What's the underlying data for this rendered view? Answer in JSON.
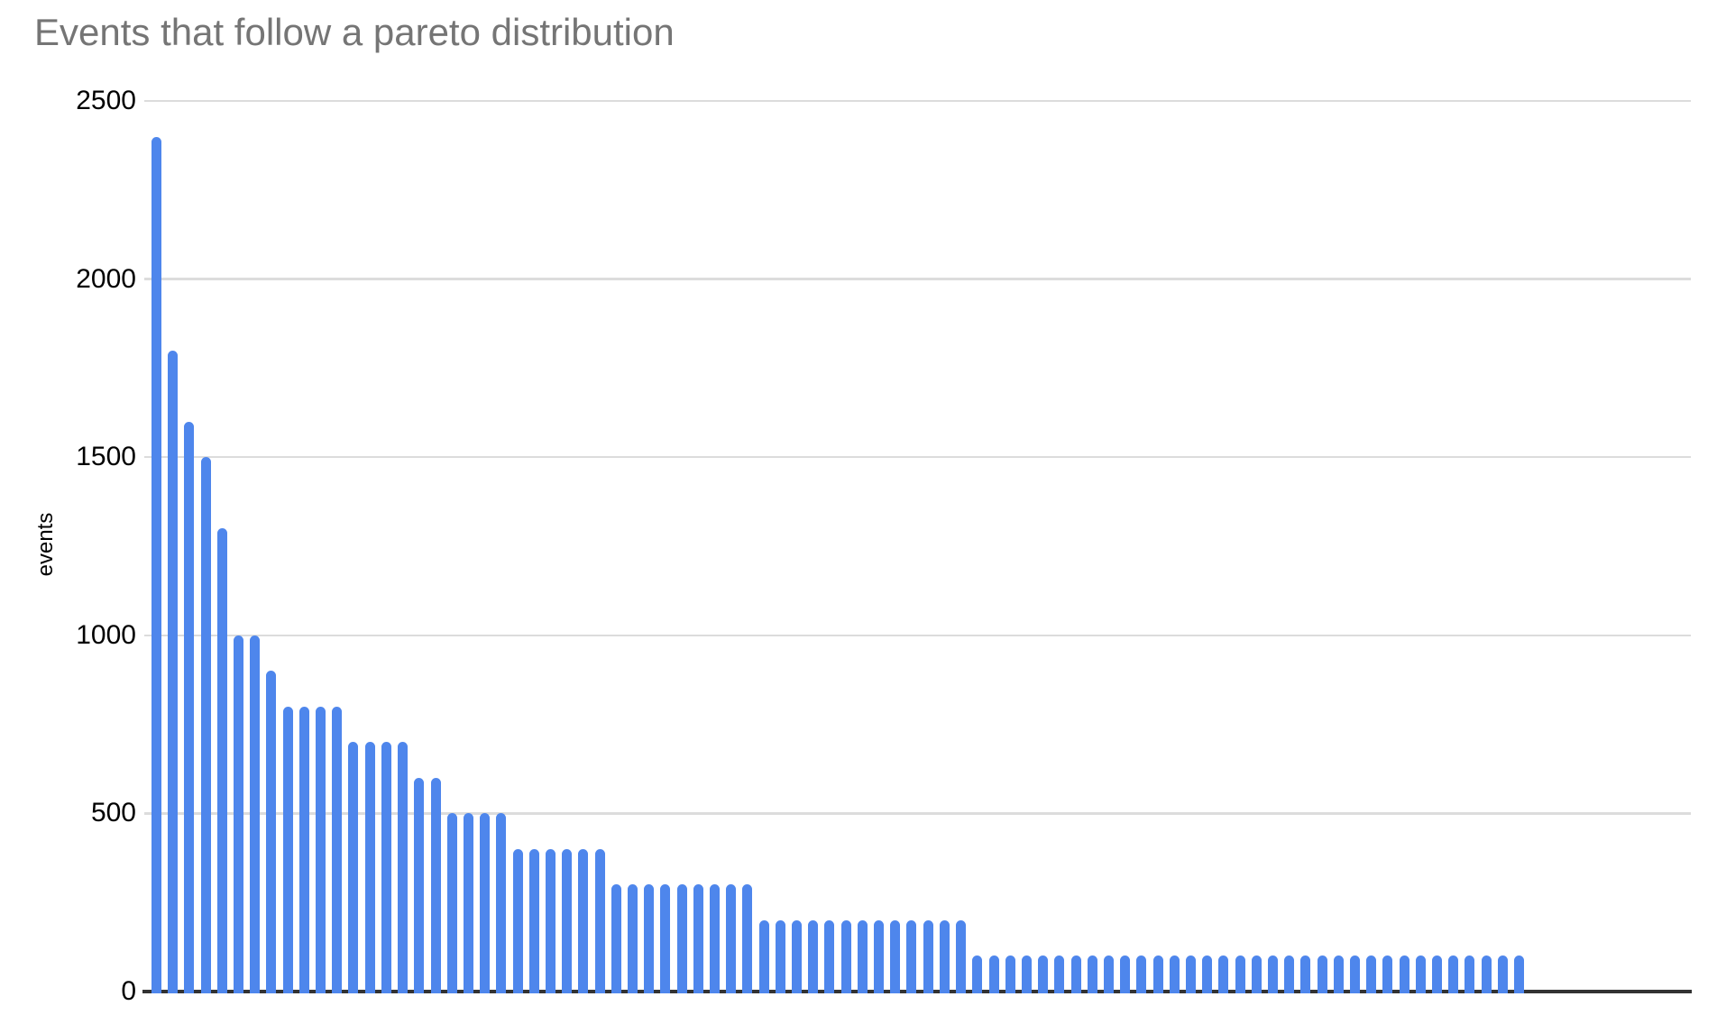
{
  "chart_data": {
    "type": "bar",
    "title": "Events that follow a pareto distribution",
    "xlabel": "",
    "ylabel": "events",
    "ylim": [
      0,
      2500
    ],
    "yticks": [
      0,
      500,
      1000,
      1500,
      2000,
      2500
    ],
    "grid": "horizontal",
    "legend": "none",
    "x_tick_labels": "none",
    "bar_count": 84,
    "values": [
      2400,
      1800,
      1600,
      1500,
      1300,
      1000,
      1000,
      900,
      800,
      800,
      800,
      800,
      700,
      700,
      700,
      700,
      600,
      600,
      500,
      500,
      500,
      500,
      400,
      400,
      400,
      400,
      400,
      400,
      300,
      300,
      300,
      300,
      300,
      300,
      300,
      300,
      300,
      200,
      200,
      200,
      200,
      200,
      200,
      200,
      200,
      200,
      200,
      200,
      200,
      200,
      100,
      100,
      100,
      100,
      100,
      100,
      100,
      100,
      100,
      100,
      100,
      100,
      100,
      100,
      100,
      100,
      100,
      100,
      100,
      100,
      100,
      100,
      100,
      100,
      100,
      100,
      100,
      100,
      100,
      100,
      100,
      100,
      100,
      100
    ],
    "colors": {
      "bar": "#4e86ec",
      "title_text": "#757575",
      "axis_text": "#000000",
      "gridline": "#dcdcdc",
      "baseline": "#333333",
      "background": "#ffffff"
    }
  }
}
